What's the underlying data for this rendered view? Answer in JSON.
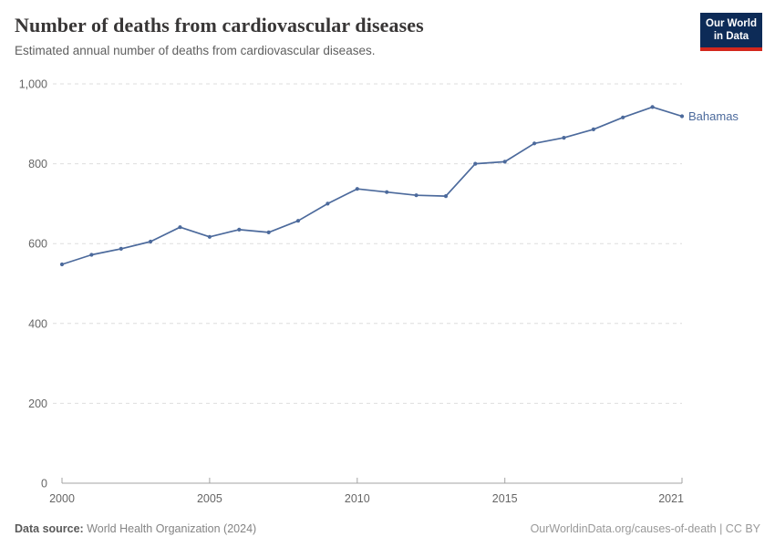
{
  "header": {
    "title": "Number of deaths from cardiovascular diseases",
    "subtitle": "Estimated annual number of deaths from cardiovascular diseases."
  },
  "logo": {
    "line1": "Our World",
    "line2": "in Data",
    "bg_color": "#0D2B57",
    "accent_color": "#D3271D"
  },
  "chart_data": {
    "type": "line",
    "title": "Number of deaths from cardiovascular diseases",
    "subtitle": "Estimated annual number of deaths from cardiovascular diseases.",
    "x": [
      2000,
      2001,
      2002,
      2003,
      2004,
      2005,
      2006,
      2007,
      2008,
      2009,
      2010,
      2011,
      2012,
      2013,
      2014,
      2015,
      2016,
      2017,
      2018,
      2019,
      2020,
      2021
    ],
    "series": [
      {
        "name": "Bahamas",
        "color": "#4C6A9C",
        "values": [
          548,
          572,
          587,
          605,
          641,
          617,
          635,
          628,
          657,
          700,
          737,
          729,
          721,
          719,
          800,
          805,
          851,
          865,
          886,
          916,
          942,
          919
        ]
      }
    ],
    "xlabel": "",
    "ylabel": "",
    "ylim": [
      0,
      1000
    ],
    "xlim": [
      2000,
      2021
    ],
    "yticks": [
      0,
      200,
      400,
      600,
      800,
      1000
    ],
    "ytick_labels": [
      "0",
      "200",
      "400",
      "600",
      "800",
      "1,000"
    ],
    "xticks": [
      2000,
      2005,
      2010,
      2015,
      2021
    ],
    "grid": "horizontal-dashed",
    "legend_position": "end-of-line-label",
    "grid_color": "#dedede",
    "axis_color": "#a3a3a3",
    "tick_label_color": "#666666"
  },
  "footer": {
    "source_label": "Data source:",
    "source_text": " World Health Organization (2024)",
    "credit": "OurWorldinData.org/causes-of-death | CC BY"
  }
}
